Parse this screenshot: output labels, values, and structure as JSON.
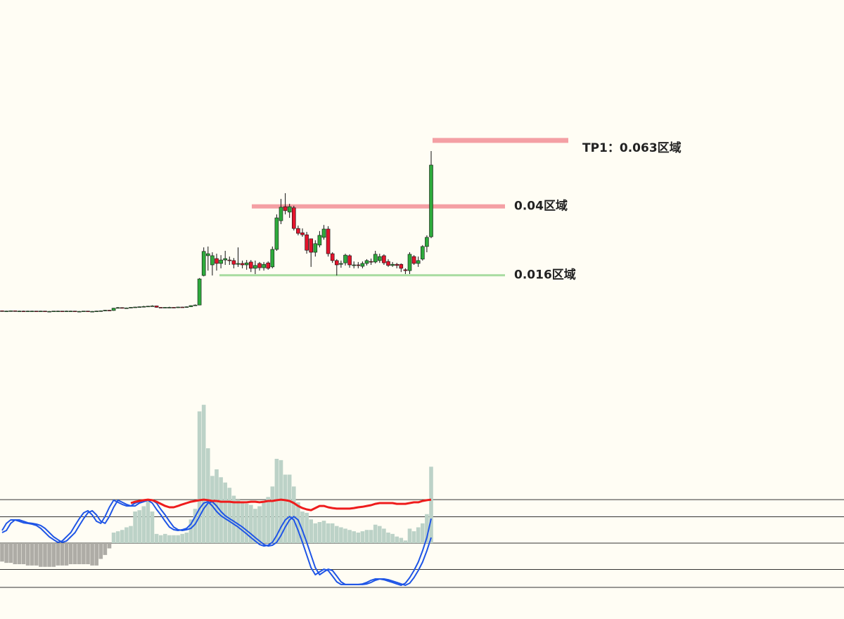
{
  "chart_data": {
    "type": "candlestick",
    "ylim": [
      0,
      0.11
    ],
    "up_color": "#2eaa3c",
    "down_color": "#e3142c",
    "candles": {
      "open": [
        0.0036,
        0.0035,
        0.0035,
        0.0036,
        0.0035,
        0.0035,
        0.0034,
        0.0035,
        0.0035,
        0.0034,
        0.0035,
        0.0034,
        0.0034,
        0.0035,
        0.0035,
        0.0034,
        0.0035,
        0.0035,
        0.0034,
        0.0034,
        0.0035,
        0.0034,
        0.0034,
        0.0035,
        0.0036,
        0.0038,
        0.0037,
        0.0045,
        0.0047,
        0.0046,
        0.0046,
        0.0048,
        0.0049,
        0.005,
        0.0051,
        0.0052,
        0.0053,
        0.0048,
        0.0047,
        0.0048,
        0.0048,
        0.0047,
        0.0049,
        0.0048,
        0.005,
        0.0054,
        0.0056,
        0.0159,
        0.0228,
        0.0196,
        0.0218,
        0.0201,
        0.0213,
        0.0213,
        0.0211,
        0.0198,
        0.0201,
        0.0196,
        0.0206,
        0.0184,
        0.0201,
        0.0186,
        0.0203,
        0.0189,
        0.025,
        0.035,
        0.0399,
        0.038,
        0.0395,
        0.0323,
        0.0308,
        0.0301,
        0.0287,
        0.024,
        0.0265,
        0.0292,
        0.0321,
        0.0235,
        0.0211,
        0.0198,
        0.0203,
        0.0228,
        0.0194,
        0.0196,
        0.0191,
        0.0201,
        0.0208,
        0.0206,
        0.0211,
        0.0228,
        0.0208,
        0.0194,
        0.0198,
        0.0198,
        0.0179,
        0.0176,
        0.0225,
        0.0201,
        0.0216,
        0.026,
        0.0294
      ],
      "high": [
        0.0037,
        0.0036,
        0.0037,
        0.0036,
        0.0036,
        0.0036,
        0.0036,
        0.0036,
        0.0035,
        0.0036,
        0.0035,
        0.0035,
        0.0035,
        0.0036,
        0.0035,
        0.0036,
        0.0036,
        0.0035,
        0.0035,
        0.0035,
        0.0035,
        0.0035,
        0.0036,
        0.0037,
        0.0039,
        0.0039,
        0.0046,
        0.0049,
        0.0048,
        0.0047,
        0.0049,
        0.005,
        0.0051,
        0.0053,
        0.0053,
        0.0055,
        0.0054,
        0.0049,
        0.0049,
        0.005,
        0.0049,
        0.005,
        0.005,
        0.0051,
        0.0055,
        0.0058,
        0.015,
        0.0257,
        0.026,
        0.024,
        0.0235,
        0.023,
        0.0245,
        0.0225,
        0.022,
        0.0257,
        0.0211,
        0.0213,
        0.0213,
        0.0211,
        0.0206,
        0.0206,
        0.0208,
        0.026,
        0.0372,
        0.0426,
        0.0446,
        0.0409,
        0.0402,
        0.0333,
        0.0323,
        0.0311,
        0.0287,
        0.0282,
        0.0314,
        0.0335,
        0.0331,
        0.024,
        0.0216,
        0.0211,
        0.0235,
        0.0233,
        0.0208,
        0.0206,
        0.0208,
        0.0216,
        0.0218,
        0.0245,
        0.0235,
        0.0233,
        0.0216,
        0.0206,
        0.0203,
        0.0201,
        0.0184,
        0.024,
        0.023,
        0.0225,
        0.0265,
        0.0299,
        0.0593
      ],
      "low": [
        0.0034,
        0.0034,
        0.0034,
        0.0034,
        0.0034,
        0.0033,
        0.0033,
        0.0034,
        0.0033,
        0.0033,
        0.0032,
        0.0033,
        0.0033,
        0.0034,
        0.0033,
        0.0033,
        0.0034,
        0.0033,
        0.0033,
        0.0033,
        0.0033,
        0.0033,
        0.0033,
        0.0034,
        0.0035,
        0.0036,
        0.0036,
        0.0044,
        0.0045,
        0.0045,
        0.0045,
        0.0047,
        0.0048,
        0.0049,
        0.005,
        0.0051,
        0.0047,
        0.0046,
        0.0046,
        0.0047,
        0.0046,
        0.0046,
        0.0047,
        0.0047,
        0.0049,
        0.0053,
        0.0055,
        0.0156,
        0.0176,
        0.0159,
        0.0176,
        0.0184,
        0.0196,
        0.0196,
        0.0184,
        0.0189,
        0.0184,
        0.0179,
        0.0171,
        0.0164,
        0.0176,
        0.0176,
        0.0179,
        0.0184,
        0.0245,
        0.0338,
        0.0372,
        0.036,
        0.0316,
        0.0299,
        0.0294,
        0.0235,
        0.0189,
        0.0225,
        0.0257,
        0.0284,
        0.0225,
        0.0203,
        0.0159,
        0.0186,
        0.0194,
        0.0186,
        0.0184,
        0.0184,
        0.0184,
        0.0194,
        0.0196,
        0.0201,
        0.0203,
        0.0196,
        0.0189,
        0.0189,
        0.0184,
        0.0171,
        0.0164,
        0.0164,
        0.0196,
        0.0189,
        0.0211,
        0.024,
        0.0289
      ],
      "close": [
        0.0035,
        0.0035,
        0.0036,
        0.0035,
        0.0035,
        0.0034,
        0.0035,
        0.0035,
        0.0034,
        0.0035,
        0.0034,
        0.0034,
        0.0035,
        0.0035,
        0.0034,
        0.0035,
        0.0035,
        0.0034,
        0.0034,
        0.0035,
        0.0034,
        0.0034,
        0.0035,
        0.0036,
        0.0038,
        0.0037,
        0.0045,
        0.0047,
        0.0046,
        0.0046,
        0.0048,
        0.0049,
        0.005,
        0.0051,
        0.0052,
        0.0053,
        0.0048,
        0.0047,
        0.0048,
        0.0048,
        0.0047,
        0.0049,
        0.0048,
        0.005,
        0.0054,
        0.0056,
        0.0147,
        0.0243,
        0.0235,
        0.0228,
        0.0201,
        0.0213,
        0.0218,
        0.0211,
        0.0198,
        0.0201,
        0.0196,
        0.0203,
        0.0184,
        0.0194,
        0.0186,
        0.0198,
        0.0184,
        0.025,
        0.036,
        0.0397,
        0.0385,
        0.0399,
        0.0323,
        0.0306,
        0.0301,
        0.0247,
        0.024,
        0.027,
        0.0299,
        0.0321,
        0.0235,
        0.0211,
        0.0196,
        0.0201,
        0.023,
        0.0196,
        0.0196,
        0.0194,
        0.0201,
        0.0211,
        0.0206,
        0.0233,
        0.0225,
        0.0203,
        0.0194,
        0.0198,
        0.0194,
        0.0184,
        0.0176,
        0.0233,
        0.0201,
        0.0211,
        0.026,
        0.0292,
        0.0544
      ]
    },
    "levels": [
      {
        "value": 0.063,
        "label": "TP1：0.063区域",
        "color": "#f4a0a4"
      },
      {
        "value": 0.04,
        "label": "0.04区域",
        "color": "#f4a0a4"
      },
      {
        "value": 0.016,
        "label": "0.016区域",
        "color": "#a8dca0"
      }
    ],
    "indicator": {
      "ylim": [
        -2.5,
        5.5
      ],
      "hlines": [
        1.65,
        1,
        0,
        -1,
        -1.68
      ],
      "positive_color": "#bcd2c7",
      "negative_color": "#aeaca6",
      "histogram": [
        -0.7,
        -0.75,
        -0.75,
        -0.8,
        -0.8,
        -0.8,
        -0.85,
        -0.85,
        -0.85,
        -0.9,
        -0.9,
        -0.9,
        -0.9,
        -0.85,
        -0.85,
        -0.85,
        -0.8,
        -0.8,
        -0.8,
        -0.8,
        -0.8,
        -0.85,
        -0.85,
        -0.6,
        -0.45,
        -0.2,
        0.4,
        0.45,
        0.5,
        0.6,
        0.65,
        1.2,
        1.25,
        1.4,
        1.65,
        1.2,
        0.35,
        0.3,
        0.35,
        0.3,
        0.3,
        0.3,
        0.35,
        0.4,
        0.9,
        1.3,
        5.0,
        5.25,
        3.6,
        2.55,
        2.8,
        2.5,
        2.3,
        2.1,
        1.8,
        1.65,
        1.55,
        1.5,
        1.45,
        1.3,
        1.4,
        1.55,
        1.75,
        2.15,
        3.2,
        3.15,
        2.6,
        2.6,
        2.15,
        1.55,
        1.2,
        1.15,
        0.9,
        0.75,
        0.8,
        0.85,
        0.75,
        0.75,
        0.65,
        0.6,
        0.55,
        0.5,
        0.45,
        0.4,
        0.45,
        0.5,
        0.5,
        0.7,
        0.65,
        0.55,
        0.4,
        0.35,
        0.25,
        0.2,
        0.1,
        0.55,
        0.45,
        0.6,
        0.75,
        1.1,
        2.9
      ],
      "lines": [
        {
          "color": "#1f55e6",
          "values": [
            0.48,
            0.75,
            0.88,
            0.88,
            0.83,
            0.77,
            0.75,
            0.72,
            0.67,
            0.56,
            0.4,
            0.24,
            0.13,
            0.03,
            0.08,
            0.24,
            0.4,
            0.67,
            0.93,
            1.15,
            1.23,
            1.07,
            0.83,
            0.75,
            1.01,
            1.36,
            1.63,
            1.55,
            1.47,
            1.41,
            1.41,
            1.52,
            1.57,
            1.63,
            1.63,
            1.52,
            1.28,
            1.07,
            0.83,
            0.61,
            0.51,
            0.48,
            0.51,
            0.56,
            0.72,
            1.01,
            1.31,
            1.52,
            1.57,
            1.41,
            1.2,
            1.04,
            0.93,
            0.83,
            0.72,
            0.61,
            0.48,
            0.35,
            0.21,
            0.08,
            -0.05,
            -0.11,
            -0.08,
            0.03,
            0.29,
            0.61,
            0.88,
            1.01,
            0.88,
            0.48,
            0.03,
            -0.45,
            -0.93,
            -1.2,
            -1.09,
            -0.99,
            -1.04,
            -1.25,
            -1.47,
            -1.57,
            -1.57,
            -1.57,
            -1.57,
            -1.57,
            -1.55,
            -1.49,
            -1.41,
            -1.36,
            -1.36,
            -1.39,
            -1.44,
            -1.49,
            -1.55,
            -1.6,
            -1.52,
            -1.31,
            -1.04,
            -0.72,
            -0.29,
            0.21,
            0.93
          ]
        },
        {
          "color": "#1f55e6",
          "values": [
            0.4,
            0.48,
            0.75,
            0.88,
            0.88,
            0.83,
            0.77,
            0.75,
            0.72,
            0.67,
            0.56,
            0.4,
            0.24,
            0.13,
            0.03,
            0.08,
            0.24,
            0.4,
            0.67,
            0.93,
            1.15,
            1.23,
            1.07,
            0.83,
            0.75,
            1.01,
            1.36,
            1.63,
            1.55,
            1.47,
            1.41,
            1.41,
            1.52,
            1.57,
            1.63,
            1.63,
            1.52,
            1.28,
            1.07,
            0.83,
            0.61,
            0.51,
            0.48,
            0.51,
            0.56,
            0.72,
            1.01,
            1.31,
            1.52,
            1.57,
            1.41,
            1.2,
            1.04,
            0.93,
            0.83,
            0.72,
            0.61,
            0.48,
            0.35,
            0.21,
            0.08,
            -0.05,
            -0.11,
            -0.08,
            0.03,
            0.29,
            0.61,
            0.88,
            1.01,
            0.88,
            0.48,
            0.03,
            -0.45,
            -0.93,
            -1.2,
            -1.09,
            -0.99,
            -1.04,
            -1.25,
            -1.47,
            -1.57,
            -1.57,
            -1.57,
            -1.57,
            -1.57,
            -1.55,
            -1.49,
            -1.41,
            -1.36,
            -1.36,
            -1.39,
            -1.44,
            -1.49,
            -1.55,
            -1.6,
            -1.52,
            -1.31,
            -1.04,
            -0.72,
            -0.29,
            0.21
          ]
        },
        {
          "color": "#ee1c1c",
          "values": [
            null,
            null,
            null,
            null,
            null,
            null,
            null,
            null,
            null,
            null,
            null,
            null,
            null,
            null,
            null,
            null,
            null,
            null,
            null,
            null,
            null,
            null,
            null,
            null,
            null,
            null,
            null,
            null,
            null,
            null,
            1.52,
            1.57,
            1.6,
            1.63,
            1.65,
            1.63,
            1.57,
            1.49,
            1.41,
            1.36,
            1.36,
            1.41,
            1.47,
            1.52,
            1.57,
            1.6,
            1.63,
            1.65,
            1.63,
            1.6,
            1.6,
            1.57,
            1.57,
            1.57,
            1.55,
            1.55,
            1.55,
            1.55,
            1.57,
            1.57,
            1.55,
            1.57,
            1.6,
            1.6,
            1.63,
            1.65,
            1.63,
            1.6,
            1.52,
            1.41,
            1.33,
            1.28,
            1.25,
            1.33,
            1.41,
            1.41,
            1.36,
            1.33,
            1.31,
            1.31,
            1.31,
            1.31,
            1.33,
            1.36,
            1.38,
            1.41,
            1.44,
            1.49,
            1.52,
            1.52,
            1.52,
            1.52,
            1.49,
            1.49,
            1.49,
            1.52,
            1.55,
            1.55,
            1.6,
            1.63,
            1.65
          ]
        }
      ]
    }
  }
}
